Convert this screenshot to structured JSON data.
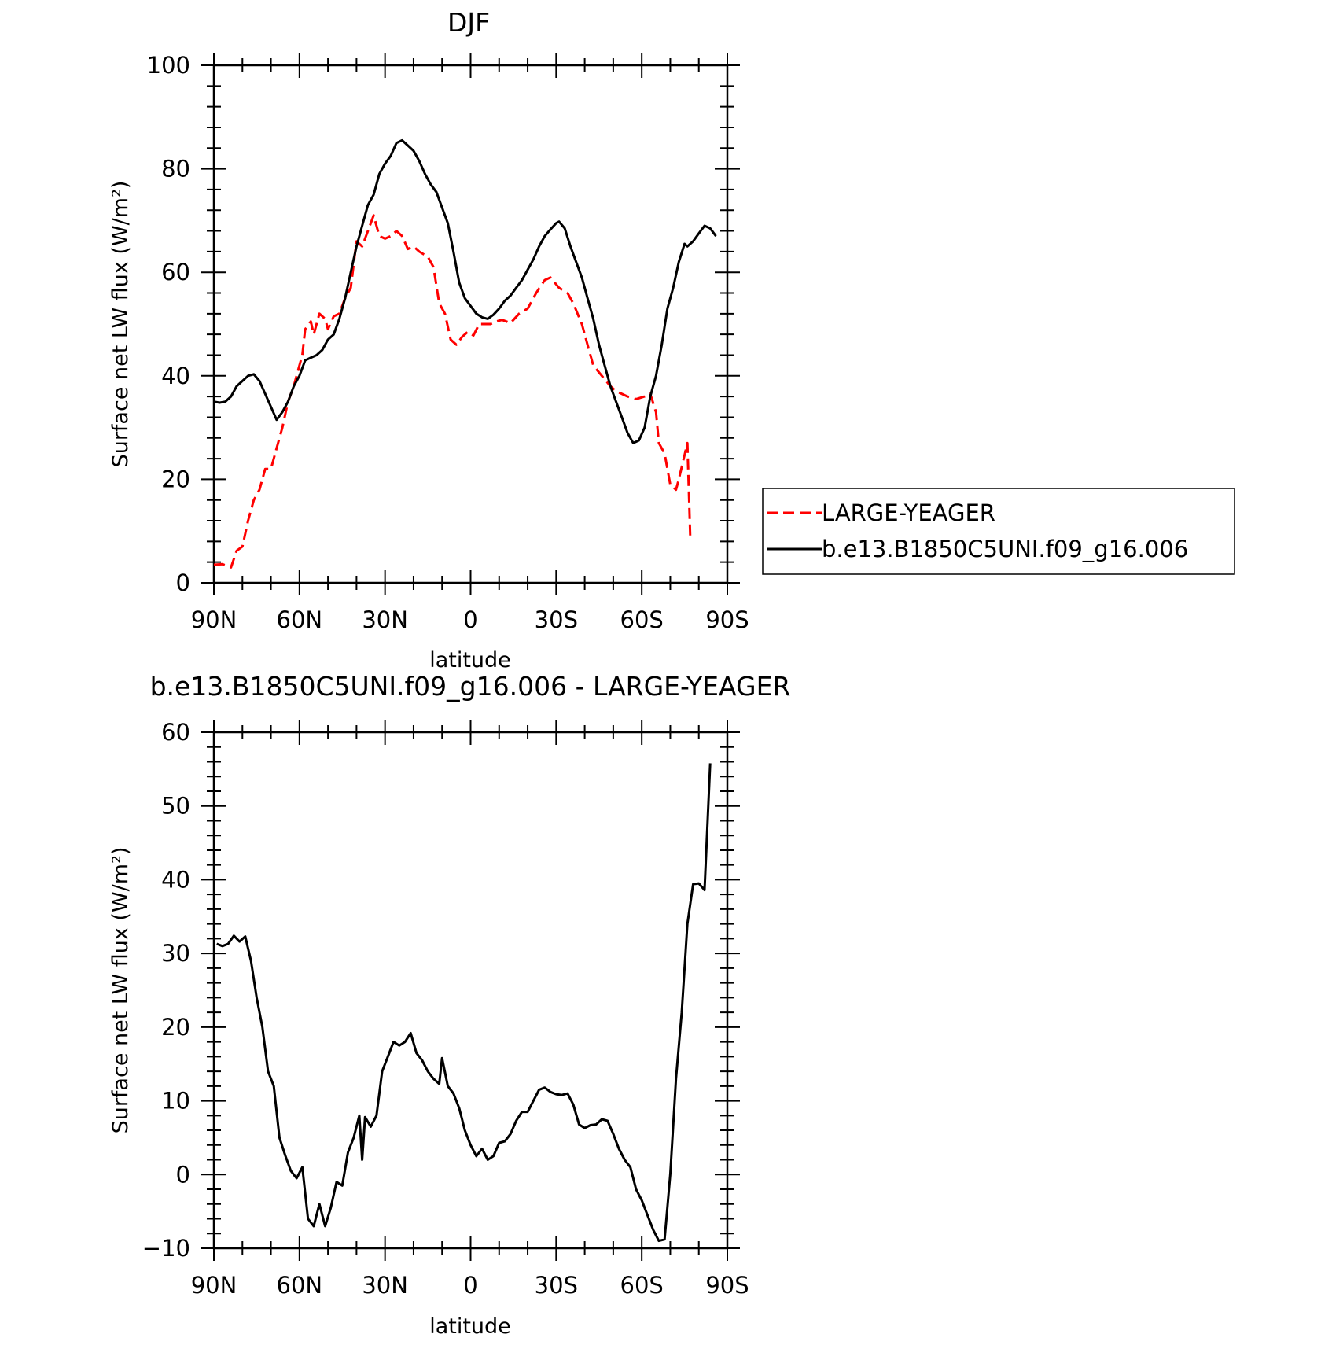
{
  "chart_data": [
    {
      "type": "line",
      "title": "DJF",
      "xlabel": "latitude",
      "ylabel": "Surface net LW flux (W/m²)",
      "xlim": [
        90,
        -90
      ],
      "ylim": [
        0,
        100
      ],
      "yticks": [
        0,
        20,
        40,
        60,
        80,
        100
      ],
      "xticks": [
        {
          "value": 90,
          "label": "90N"
        },
        {
          "value": 60,
          "label": "60N"
        },
        {
          "value": 30,
          "label": "30N"
        },
        {
          "value": 0,
          "label": "0"
        },
        {
          "value": -30,
          "label": "30S"
        },
        {
          "value": -60,
          "label": "60S"
        },
        {
          "value": -90,
          "label": "90S"
        }
      ],
      "legend_position": "right",
      "series": [
        {
          "name": "LARGE-YEAGER",
          "color": "#ff0000",
          "dash": "dashed",
          "points": [
            [
              90,
              3.5
            ],
            [
              87,
              3.6
            ],
            [
              84,
              3.0
            ],
            [
              82,
              6.2
            ],
            [
              80,
              7.0
            ],
            [
              78,
              12
            ],
            [
              76,
              16
            ],
            [
              74,
              18
            ],
            [
              72,
              22
            ],
            [
              70,
              22
            ],
            [
              68,
              26
            ],
            [
              66,
              30
            ],
            [
              64,
              35
            ],
            [
              62,
              38
            ],
            [
              60,
              42
            ],
            [
              59,
              44
            ],
            [
              58,
              49
            ],
            [
              56,
              50.5
            ],
            [
              55,
              48
            ],
            [
              53,
              52
            ],
            [
              51,
              51
            ],
            [
              50,
              49
            ],
            [
              48,
              51.5
            ],
            [
              46,
              52
            ],
            [
              44,
              55
            ],
            [
              42,
              57
            ],
            [
              40,
              66
            ],
            [
              38,
              65
            ],
            [
              36,
              68
            ],
            [
              34,
              71
            ],
            [
              32,
              67
            ],
            [
              30,
              66.5
            ],
            [
              28,
              67
            ],
            [
              26,
              68
            ],
            [
              24,
              67
            ],
            [
              22,
              64.5
            ],
            [
              20,
              65
            ],
            [
              18,
              64
            ],
            [
              15,
              63
            ],
            [
              13,
              61
            ],
            [
              11,
              54
            ],
            [
              9,
              52
            ],
            [
              7,
              47
            ],
            [
              5,
              46
            ],
            [
              3,
              47.5
            ],
            [
              1,
              48.5
            ],
            [
              -1,
              47.8
            ],
            [
              -3,
              50
            ],
            [
              -5,
              50
            ],
            [
              -7,
              50
            ],
            [
              -9,
              50.5
            ],
            [
              -11,
              50.8
            ],
            [
              -14,
              50.2
            ],
            [
              -17,
              52
            ],
            [
              -20,
              53
            ],
            [
              -23,
              56
            ],
            [
              -26,
              58.5
            ],
            [
              -28,
              59
            ],
            [
              -31,
              57
            ],
            [
              -34,
              56
            ],
            [
              -36,
              54
            ],
            [
              -39,
              50
            ],
            [
              -41,
              46
            ],
            [
              -43,
              42
            ],
            [
              -46,
              40
            ],
            [
              -49,
              38
            ],
            [
              -51,
              37
            ],
            [
              -53,
              36.5
            ],
            [
              -55,
              36
            ],
            [
              -58,
              35.5
            ],
            [
              -61,
              36
            ],
            [
              -63,
              36.5
            ],
            [
              -65,
              33
            ],
            [
              -66,
              27
            ],
            [
              -68,
              25
            ],
            [
              -70,
              19
            ],
            [
              -72,
              18
            ],
            [
              -73,
              20
            ],
            [
              -76,
              27
            ],
            [
              -77,
              9
            ]
          ]
        },
        {
          "name": "b.e13.B1850C5UNI.f09_g16.006",
          "color": "#000000",
          "dash": "solid",
          "points": [
            [
              90,
              35
            ],
            [
              88,
              34.8
            ],
            [
              86,
              35
            ],
            [
              84,
              36
            ],
            [
              82,
              38
            ],
            [
              80,
              39
            ],
            [
              78,
              40
            ],
            [
              76,
              40.3
            ],
            [
              74,
              39
            ],
            [
              72,
              36.5
            ],
            [
              70,
              34
            ],
            [
              68,
              31.5
            ],
            [
              66,
              33
            ],
            [
              64,
              35
            ],
            [
              62,
              38
            ],
            [
              60,
              40
            ],
            [
              58,
              43
            ],
            [
              56,
              43.5
            ],
            [
              54,
              44
            ],
            [
              52,
              45
            ],
            [
              50,
              47
            ],
            [
              48,
              48
            ],
            [
              46,
              51
            ],
            [
              44,
              55
            ],
            [
              42,
              60
            ],
            [
              40,
              65
            ],
            [
              38,
              69
            ],
            [
              36,
              73
            ],
            [
              34,
              75
            ],
            [
              32,
              79
            ],
            [
              30,
              81
            ],
            [
              28,
              82.5
            ],
            [
              26,
              85
            ],
            [
              24,
              85.5
            ],
            [
              22,
              84.5
            ],
            [
              20,
              83.5
            ],
            [
              18,
              81.5
            ],
            [
              16,
              79
            ],
            [
              14,
              77
            ],
            [
              12,
              75.5
            ],
            [
              10,
              72.5
            ],
            [
              8,
              69.5
            ],
            [
              6,
              64
            ],
            [
              4,
              58
            ],
            [
              2,
              55
            ],
            [
              0,
              53.5
            ],
            [
              -2,
              52
            ],
            [
              -4,
              51.3
            ],
            [
              -6,
              51
            ],
            [
              -8,
              51.8
            ],
            [
              -10,
              53
            ],
            [
              -12,
              54.5
            ],
            [
              -14,
              55.5
            ],
            [
              -16,
              57
            ],
            [
              -18,
              58.5
            ],
            [
              -20,
              60.5
            ],
            [
              -22,
              62.5
            ],
            [
              -24,
              65
            ],
            [
              -26,
              67
            ],
            [
              -28,
              68.3
            ],
            [
              -30,
              69.5
            ],
            [
              -31,
              69.8
            ],
            [
              -33,
              68.5
            ],
            [
              -35,
              65
            ],
            [
              -37,
              62
            ],
            [
              -39,
              59
            ],
            [
              -41,
              55
            ],
            [
              -43,
              51
            ],
            [
              -45,
              46
            ],
            [
              -47,
              42
            ],
            [
              -49,
              38
            ],
            [
              -51,
              35
            ],
            [
              -53,
              32
            ],
            [
              -55,
              29
            ],
            [
              -57,
              27
            ],
            [
              -59,
              27.5
            ],
            [
              -61,
              30
            ],
            [
              -63,
              36
            ],
            [
              -65,
              40
            ],
            [
              -67,
              46
            ],
            [
              -69,
              53
            ],
            [
              -71,
              57
            ],
            [
              -73,
              62
            ],
            [
              -75,
              65.5
            ],
            [
              -76,
              65
            ],
            [
              -78,
              66
            ],
            [
              -80,
              67.5
            ],
            [
              -82,
              69
            ],
            [
              -84,
              68.5
            ],
            [
              -86,
              67
            ]
          ]
        }
      ]
    },
    {
      "type": "line",
      "title": "b.e13.B1850C5UNI.f09_g16.006 - LARGE-YEAGER",
      "xlabel": "latitude",
      "ylabel": "Surface net LW flux (W/m²)",
      "xlim": [
        90,
        -90
      ],
      "ylim": [
        -10,
        60
      ],
      "yticks": [
        -10,
        0,
        10,
        20,
        30,
        40,
        50,
        60
      ],
      "xticks": [
        {
          "value": 90,
          "label": "90N"
        },
        {
          "value": 60,
          "label": "60N"
        },
        {
          "value": 30,
          "label": "30N"
        },
        {
          "value": 0,
          "label": "0"
        },
        {
          "value": -30,
          "label": "30S"
        },
        {
          "value": -60,
          "label": "60S"
        },
        {
          "value": -90,
          "label": "90S"
        }
      ],
      "series": [
        {
          "color": "#000000",
          "dash": "solid",
          "points": [
            [
              89,
              31.3
            ],
            [
              87,
              31
            ],
            [
              85,
              31.3
            ],
            [
              83,
              32.4
            ],
            [
              81,
              31.6
            ],
            [
              79,
              32.3
            ],
            [
              77,
              29
            ],
            [
              75,
              24
            ],
            [
              73,
              20
            ],
            [
              71,
              14
            ],
            [
              69,
              12
            ],
            [
              67,
              5
            ],
            [
              65,
              2.6
            ],
            [
              63,
              0.5
            ],
            [
              61,
              -0.5
            ],
            [
              59,
              1
            ],
            [
              57,
              -6
            ],
            [
              55,
              -7
            ],
            [
              53,
              -4
            ],
            [
              51,
              -7
            ],
            [
              49,
              -4.5
            ],
            [
              47,
              -1
            ],
            [
              45,
              -1.5
            ],
            [
              43,
              3
            ],
            [
              41,
              5
            ],
            [
              39,
              8
            ],
            [
              38,
              2
            ],
            [
              37,
              7.8
            ],
            [
              35,
              6.5
            ],
            [
              33,
              8
            ],
            [
              31,
              14
            ],
            [
              29,
              16
            ],
            [
              27,
              18
            ],
            [
              25,
              17.5
            ],
            [
              23,
              18
            ],
            [
              21,
              19.2
            ],
            [
              19,
              16.5
            ],
            [
              17,
              15.5
            ],
            [
              15,
              14
            ],
            [
              13,
              13
            ],
            [
              11,
              12.3
            ],
            [
              10,
              15.8
            ],
            [
              8,
              12
            ],
            [
              6,
              11
            ],
            [
              4,
              9
            ],
            [
              2,
              6
            ],
            [
              0,
              4
            ],
            [
              -2,
              2.5
            ],
            [
              -4,
              3.5
            ],
            [
              -6,
              2
            ],
            [
              -8,
              2.5
            ],
            [
              -10,
              4.3
            ],
            [
              -12,
              4.5
            ],
            [
              -14,
              5.5
            ],
            [
              -16,
              7.3
            ],
            [
              -18,
              8.5
            ],
            [
              -20,
              8.5
            ],
            [
              -22,
              10
            ],
            [
              -24,
              11.5
            ],
            [
              -26,
              11.8
            ],
            [
              -28,
              11.2
            ],
            [
              -30,
              10.9
            ],
            [
              -32,
              10.8
            ],
            [
              -34,
              11
            ],
            [
              -36,
              9.5
            ],
            [
              -38,
              6.8
            ],
            [
              -40,
              6.3
            ],
            [
              -42,
              6.7
            ],
            [
              -44,
              6.8
            ],
            [
              -46,
              7.5
            ],
            [
              -48,
              7.3
            ],
            [
              -50,
              5.5
            ],
            [
              -52,
              3.5
            ],
            [
              -54,
              2
            ],
            [
              -56,
              1
            ],
            [
              -58,
              -2
            ],
            [
              -60,
              -3.5
            ],
            [
              -62,
              -5.5
            ],
            [
              -64,
              -7.5
            ],
            [
              -66,
              -9
            ],
            [
              -68,
              -8.8
            ],
            [
              -70,
              0
            ],
            [
              -72,
              13
            ],
            [
              -74,
              22
            ],
            [
              -76,
              34
            ],
            [
              -78,
              39.4
            ],
            [
              -80,
              39.5
            ],
            [
              -82,
              38.6
            ],
            [
              -84,
              55.8
            ]
          ]
        }
      ]
    }
  ]
}
